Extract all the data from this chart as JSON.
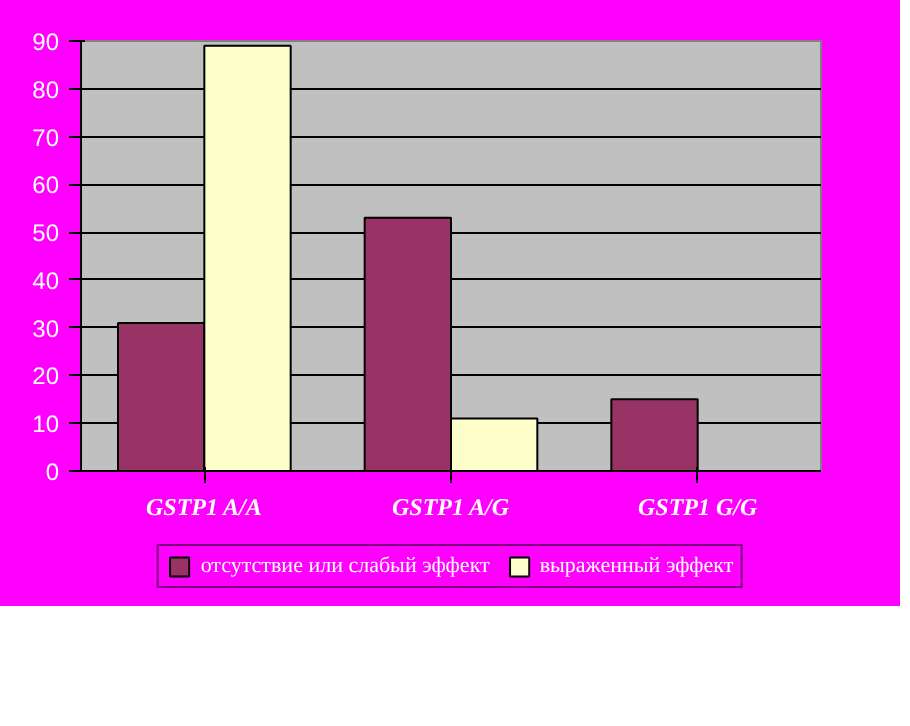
{
  "chart_data": {
    "type": "bar",
    "categories": [
      "GSTP1 A/A",
      "GSTP1 A/G",
      "GSTP1 G/G"
    ],
    "series": [
      {
        "name": "отсутствие или слабый эффект",
        "color": "#993366",
        "values": [
          31,
          53,
          15
        ]
      },
      {
        "name": "выраженный эффект",
        "color": "#ffffcc",
        "values": [
          89,
          11,
          0
        ]
      }
    ],
    "ylim": [
      0,
      90
    ],
    "yticks": [
      0,
      10,
      20,
      30,
      40,
      50,
      60,
      70,
      80,
      90
    ],
    "grid": "y",
    "legend": "bottom"
  }
}
